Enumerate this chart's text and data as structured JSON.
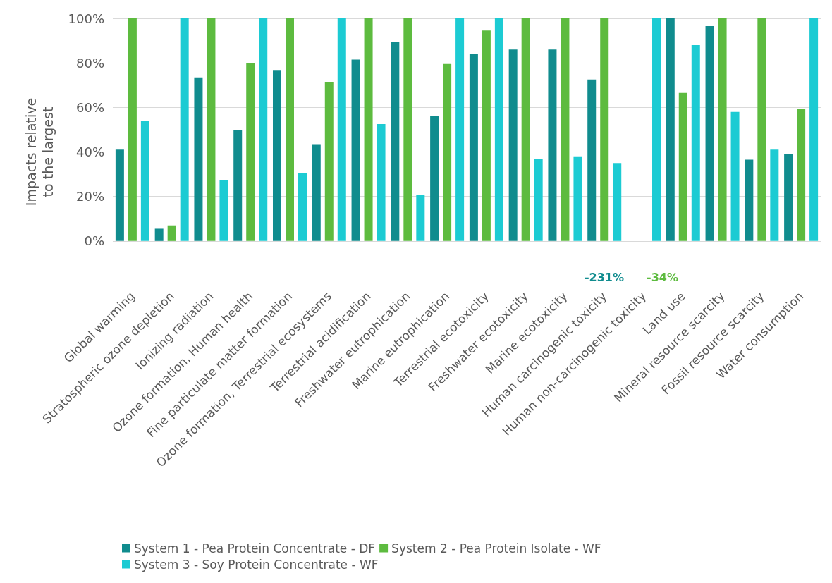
{
  "chart_data": {
    "type": "bar",
    "ylabel": "Impacts relative to the largest",
    "categories": [
      "Global warming",
      "Stratospheric ozone depletion",
      "Ionizing radiation",
      "Ozone formation, Human health",
      "Fine particulate matter formation",
      "Ozone formation, Terrestrial ecosystems",
      "Terrestrial acidification",
      "Freshwater eutrophication",
      "Marine eutrophication",
      "Terrestrial ecotoxicity",
      "Freshwater ecotoxicity",
      "Marine ecotoxicity",
      "Human carcinogenic toxicity",
      "Human non-carcinogenic toxicity",
      "Land use",
      "Mineral resource scarcity",
      "Fossil resource scarcity",
      "Water consumption"
    ],
    "series": [
      {
        "name": "System 1 - Pea Protein Concentrate - DF",
        "color": "#108c8e",
        "values": [
          41,
          5.5,
          73.5,
          50,
          76.5,
          43.5,
          81.5,
          89.5,
          56,
          84,
          86,
          86,
          72.5,
          null,
          100,
          96.5,
          36.5,
          39
        ]
      },
      {
        "name": "System 2 - Pea Protein Isolate - WF",
        "color": "#5dbb3f",
        "values": [
          100,
          7,
          100,
          80,
          100,
          71.5,
          100,
          100,
          79.5,
          94.5,
          100,
          100,
          100,
          null,
          66.5,
          100,
          100,
          59.5
        ]
      },
      {
        "name": "System 3 - Soy Protein Concentrate - WF",
        "color": "#1ccbd3",
        "values": [
          54,
          100,
          27.5,
          100,
          30.5,
          100,
          52.5,
          20.5,
          100,
          100,
          37,
          38,
          35,
          100,
          88,
          58,
          41,
          100
        ]
      }
    ],
    "ylim": [
      -20,
      100
    ],
    "yticks": [
      {
        "value": -20,
        "label": null
      },
      {
        "value": 0,
        "label": "0%"
      },
      {
        "value": 20,
        "label": "20%"
      },
      {
        "value": 40,
        "label": "40%"
      },
      {
        "value": 60,
        "label": "60%"
      },
      {
        "value": 80,
        "label": "80%"
      },
      {
        "value": 100,
        "label": "100%"
      }
    ],
    "annotations": [
      "-231%",
      "-34%"
    ],
    "grid": "y",
    "legend": "bottom"
  }
}
